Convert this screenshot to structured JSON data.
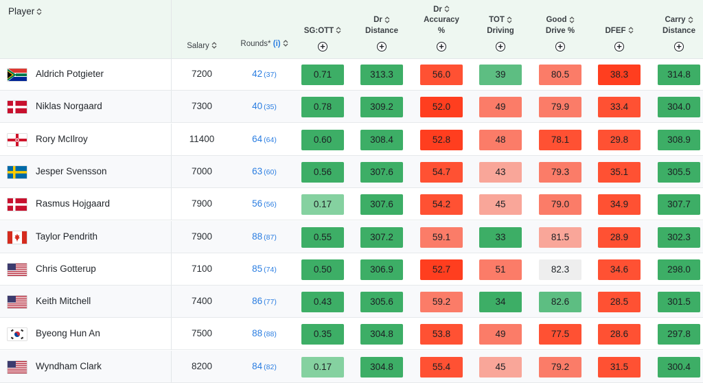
{
  "columns": {
    "player": "Player",
    "salary": "Salary",
    "rounds": "Rounds",
    "rounds_marker": "*",
    "rounds_info": "(i)",
    "stats": [
      {
        "lines": [
          "SG:OTT"
        ]
      },
      {
        "lines": [
          "Dr",
          "Distance"
        ]
      },
      {
        "lines": [
          "Dr",
          "Accuracy",
          "%"
        ]
      },
      {
        "lines": [
          "TOT",
          "Driving"
        ]
      },
      {
        "lines": [
          "Good",
          "Drive %"
        ]
      },
      {
        "lines": [
          "DFEF"
        ]
      },
      {
        "lines": [
          "Carry",
          "Distance"
        ]
      }
    ],
    "add_symbol": "+"
  },
  "colors": {
    "g1": "#3dae66",
    "g2": "#5dbe82",
    "g3": "#85d1a0",
    "n": "#eeeeee",
    "r1": "#f9a699",
    "r2": "#fb7c68",
    "r3": "#ff5133",
    "r4": "#ff3e1f",
    "link_blue": "#2a7de1"
  },
  "rows": [
    {
      "flag": "south-africa",
      "name": "Aldrich Potgieter",
      "salary": "7200",
      "rounds": "42",
      "rounds_sub": "(37)",
      "stats": [
        {
          "v": "0.71",
          "c": "g1"
        },
        {
          "v": "313.3",
          "c": "g1"
        },
        {
          "v": "56.0",
          "c": "r3"
        },
        {
          "v": "39",
          "c": "g2"
        },
        {
          "v": "80.5",
          "c": "r2"
        },
        {
          "v": "38.3",
          "c": "r4"
        },
        {
          "v": "314.8",
          "c": "g1"
        }
      ]
    },
    {
      "flag": "denmark",
      "name": "Niklas Norgaard",
      "salary": "7300",
      "rounds": "40",
      "rounds_sub": "(35)",
      "stats": [
        {
          "v": "0.78",
          "c": "g1"
        },
        {
          "v": "309.2",
          "c": "g1"
        },
        {
          "v": "52.0",
          "c": "r4"
        },
        {
          "v": "49",
          "c": "r2"
        },
        {
          "v": "79.9",
          "c": "r2"
        },
        {
          "v": "33.4",
          "c": "r3"
        },
        {
          "v": "304.0",
          "c": "g1"
        }
      ]
    },
    {
      "flag": "northern-ireland",
      "name": "Rory McIlroy",
      "salary": "11400",
      "rounds": "64",
      "rounds_sub": "(64)",
      "stats": [
        {
          "v": "0.60",
          "c": "g1"
        },
        {
          "v": "308.4",
          "c": "g1"
        },
        {
          "v": "52.8",
          "c": "r4"
        },
        {
          "v": "48",
          "c": "r2"
        },
        {
          "v": "78.1",
          "c": "r3"
        },
        {
          "v": "29.8",
          "c": "r3"
        },
        {
          "v": "308.9",
          "c": "g1"
        }
      ]
    },
    {
      "flag": "sweden",
      "name": "Jesper Svensson",
      "salary": "7000",
      "rounds": "63",
      "rounds_sub": "(60)",
      "stats": [
        {
          "v": "0.56",
          "c": "g1"
        },
        {
          "v": "307.6",
          "c": "g1"
        },
        {
          "v": "54.7",
          "c": "r3"
        },
        {
          "v": "43",
          "c": "r1"
        },
        {
          "v": "79.3",
          "c": "r2"
        },
        {
          "v": "35.1",
          "c": "r3"
        },
        {
          "v": "305.5",
          "c": "g1"
        }
      ]
    },
    {
      "flag": "denmark",
      "name": "Rasmus Hojgaard",
      "salary": "7900",
      "rounds": "56",
      "rounds_sub": "(56)",
      "stats": [
        {
          "v": "0.17",
          "c": "g3"
        },
        {
          "v": "307.6",
          "c": "g1"
        },
        {
          "v": "54.2",
          "c": "r3"
        },
        {
          "v": "45",
          "c": "r1"
        },
        {
          "v": "79.0",
          "c": "r2"
        },
        {
          "v": "34.9",
          "c": "r3"
        },
        {
          "v": "307.7",
          "c": "g1"
        }
      ]
    },
    {
      "flag": "canada",
      "name": "Taylor Pendrith",
      "salary": "7900",
      "rounds": "88",
      "rounds_sub": "(87)",
      "stats": [
        {
          "v": "0.55",
          "c": "g1"
        },
        {
          "v": "307.2",
          "c": "g1"
        },
        {
          "v": "59.1",
          "c": "r2"
        },
        {
          "v": "33",
          "c": "g1"
        },
        {
          "v": "81.5",
          "c": "r1"
        },
        {
          "v": "28.9",
          "c": "r3"
        },
        {
          "v": "302.3",
          "c": "g1"
        }
      ]
    },
    {
      "flag": "usa",
      "name": "Chris Gotterup",
      "salary": "7100",
      "rounds": "85",
      "rounds_sub": "(74)",
      "stats": [
        {
          "v": "0.50",
          "c": "g1"
        },
        {
          "v": "306.9",
          "c": "g1"
        },
        {
          "v": "52.7",
          "c": "r4"
        },
        {
          "v": "51",
          "c": "r2"
        },
        {
          "v": "82.3",
          "c": "n"
        },
        {
          "v": "34.6",
          "c": "r3"
        },
        {
          "v": "298.0",
          "c": "g1"
        }
      ]
    },
    {
      "flag": "usa",
      "name": "Keith Mitchell",
      "salary": "7400",
      "rounds": "86",
      "rounds_sub": "(77)",
      "stats": [
        {
          "v": "0.43",
          "c": "g1"
        },
        {
          "v": "305.6",
          "c": "g1"
        },
        {
          "v": "59.2",
          "c": "r2"
        },
        {
          "v": "34",
          "c": "g1"
        },
        {
          "v": "82.6",
          "c": "g2"
        },
        {
          "v": "28.5",
          "c": "r3"
        },
        {
          "v": "301.5",
          "c": "g1"
        }
      ]
    },
    {
      "flag": "south-korea",
      "name": "Byeong Hun An",
      "salary": "7500",
      "rounds": "88",
      "rounds_sub": "(88)",
      "stats": [
        {
          "v": "0.35",
          "c": "g1"
        },
        {
          "v": "304.8",
          "c": "g1"
        },
        {
          "v": "53.8",
          "c": "r3"
        },
        {
          "v": "49",
          "c": "r2"
        },
        {
          "v": "77.5",
          "c": "r3"
        },
        {
          "v": "28.6",
          "c": "r3"
        },
        {
          "v": "297.8",
          "c": "g1"
        }
      ]
    },
    {
      "flag": "usa",
      "name": "Wyndham Clark",
      "salary": "8200",
      "rounds": "84",
      "rounds_sub": "(82)",
      "stats": [
        {
          "v": "0.17",
          "c": "g3"
        },
        {
          "v": "304.8",
          "c": "g1"
        },
        {
          "v": "55.4",
          "c": "r3"
        },
        {
          "v": "45",
          "c": "r1"
        },
        {
          "v": "79.2",
          "c": "r2"
        },
        {
          "v": "31.5",
          "c": "r3"
        },
        {
          "v": "300.4",
          "c": "g1"
        }
      ]
    }
  ]
}
